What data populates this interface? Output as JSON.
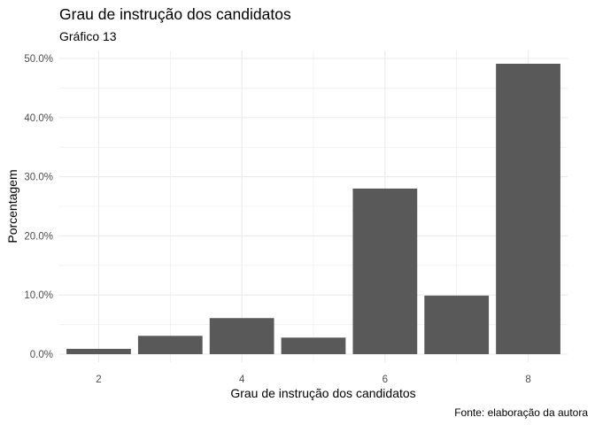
{
  "chart_data": {
    "type": "bar",
    "title": "Grau de instrução dos candidatos",
    "subtitle": "Gráfico 13",
    "caption": "Fonte: elaboração da autora",
    "xlabel": "Grau de instrução dos candidatos",
    "ylabel": "Porcentagem",
    "categories": [
      2,
      3,
      4,
      5,
      6,
      7,
      8
    ],
    "values": [
      0.9,
      3.1,
      6.1,
      2.8,
      28.0,
      9.9,
      49.1
    ],
    "x_ticks": [
      2,
      4,
      6,
      8
    ],
    "x_tick_labels": [
      "2",
      "4",
      "6",
      "8"
    ],
    "y_ticks": [
      0,
      10,
      20,
      30,
      40,
      50
    ],
    "y_tick_labels": [
      "0.0%",
      "10.0%",
      "20.0%",
      "30.0%",
      "40.0%",
      "50.0%"
    ],
    "ylim": [
      0,
      50
    ],
    "xlim": [
      1.45,
      8.55
    ],
    "grid": true,
    "bar_color": "#595959",
    "grid_color": "#ebebeb"
  }
}
